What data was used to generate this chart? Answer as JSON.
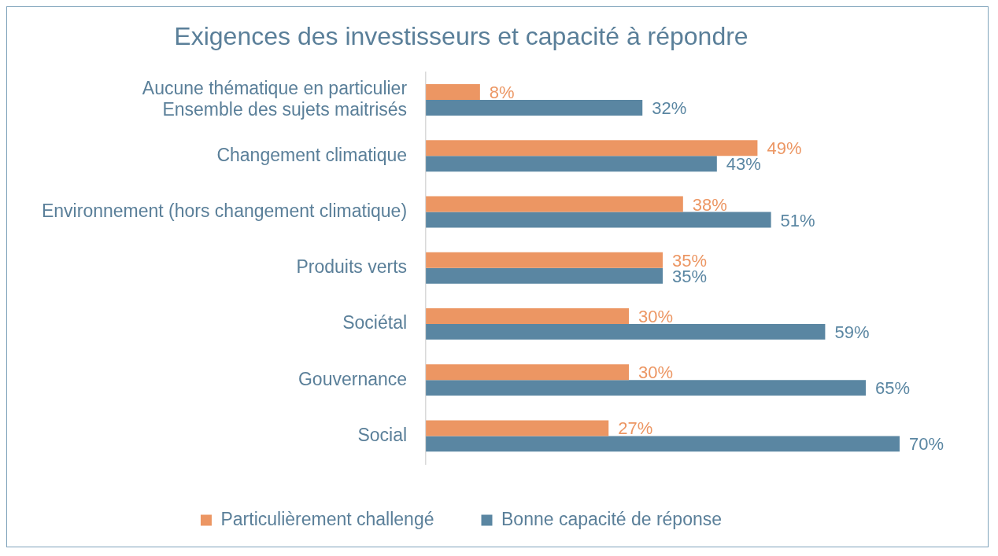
{
  "chart_data": {
    "type": "bar",
    "orientation": "horizontal",
    "title": "Exigences des investisseurs et capacité à répondre",
    "categories": [
      "Aucune thématique en particulier\nEnsemble des sujets maitrisés",
      "Changement climatique",
      "Environnement (hors changement climatique)",
      "Produits verts",
      "Sociétal",
      "Gouvernance",
      "Social"
    ],
    "series": [
      {
        "name": "Particulièrement challengé",
        "color": "#ec9663",
        "values": [
          8,
          49,
          38,
          35,
          30,
          30,
          27
        ],
        "value_labels": [
          "8%",
          "49%",
          "38%",
          "35%",
          "30%",
          "30%",
          "27%"
        ]
      },
      {
        "name": "Bonne capacité de réponse",
        "color": "#5a86a2",
        "values": [
          32,
          43,
          51,
          35,
          59,
          65,
          70
        ],
        "value_labels": [
          "32%",
          "43%",
          "51%",
          "35%",
          "59%",
          "65%",
          "70%"
        ]
      }
    ],
    "tick_labels": "y",
    "grid": false,
    "legend": "bottom"
  }
}
